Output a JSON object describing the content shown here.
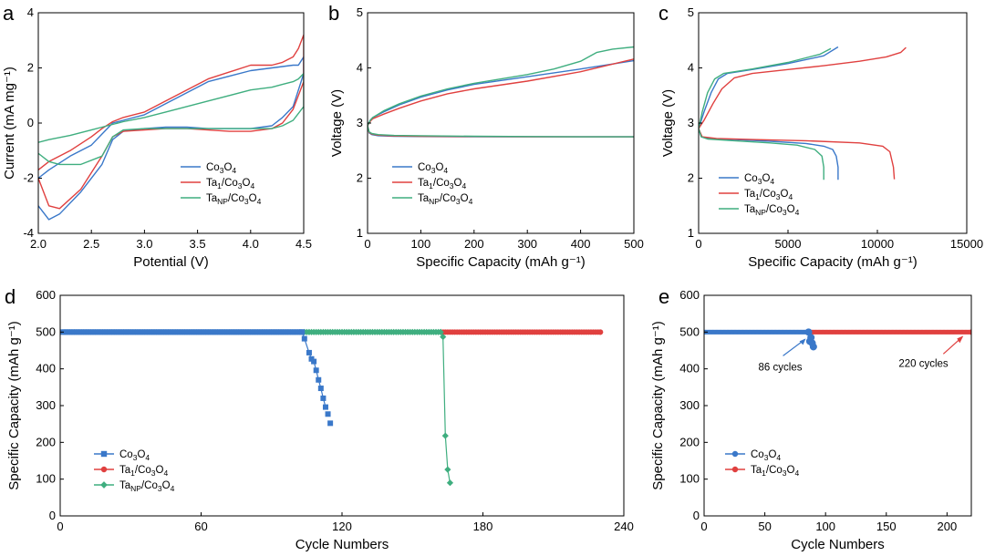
{
  "colors": {
    "co3o4": "#3a78c9",
    "ta1": "#e0403f",
    "tanp": "#3fae7f"
  },
  "chart_data": [
    {
      "id": "a",
      "panel_label": "a",
      "type": "line",
      "xlabel": "Potential (V)",
      "ylabel": "Current (mA mg⁻¹)",
      "xlim": [
        2.0,
        4.5
      ],
      "ylim": [
        -4,
        4
      ],
      "xticks": [
        "2.0",
        "2.5",
        "3.0",
        "3.5",
        "4.0",
        "4.5"
      ],
      "yticks": [
        "-4",
        "-2",
        "0",
        "2",
        "4"
      ],
      "legend_position": "lower-right",
      "series": [
        {
          "name": "Co3O4",
          "color": "#3a78c9",
          "x": [
            2.0,
            2.1,
            2.2,
            2.4,
            2.6,
            2.7,
            2.8,
            3.0,
            3.2,
            3.4,
            3.6,
            3.8,
            4.0,
            4.2,
            4.3,
            4.4,
            4.5,
            4.5,
            4.45,
            4.4,
            4.3,
            4.2,
            4.0,
            3.6,
            3.2,
            3.0,
            2.8,
            2.7,
            2.6,
            2.5,
            2.3,
            2.1,
            2.0
          ],
          "y": [
            -3.0,
            -3.5,
            -3.3,
            -2.5,
            -1.5,
            -0.6,
            -0.3,
            -0.2,
            -0.15,
            -0.15,
            -0.2,
            -0.2,
            -0.2,
            -0.1,
            0.2,
            0.6,
            1.8,
            2.4,
            2.1,
            2.1,
            2.05,
            2.0,
            1.9,
            1.5,
            0.7,
            0.3,
            0.1,
            0.0,
            -0.4,
            -0.8,
            -1.2,
            -1.7,
            -2.0
          ]
        },
        {
          "name": "Ta1/Co3O4",
          "color": "#e0403f",
          "x": [
            2.0,
            2.1,
            2.2,
            2.4,
            2.6,
            2.7,
            2.8,
            3.0,
            3.2,
            3.4,
            3.6,
            3.8,
            4.0,
            4.2,
            4.3,
            4.4,
            4.5,
            4.5,
            4.45,
            4.4,
            4.3,
            4.2,
            4.0,
            3.6,
            3.2,
            3.0,
            2.8,
            2.7,
            2.6,
            2.5,
            2.3,
            2.1,
            2.0
          ],
          "y": [
            -2.0,
            -3.0,
            -3.1,
            -2.4,
            -1.2,
            -0.5,
            -0.3,
            -0.25,
            -0.2,
            -0.2,
            -0.25,
            -0.3,
            -0.3,
            -0.2,
            0.0,
            0.5,
            1.5,
            3.2,
            2.7,
            2.4,
            2.2,
            2.1,
            2.1,
            1.6,
            0.8,
            0.4,
            0.2,
            0.05,
            -0.2,
            -0.5,
            -1.0,
            -1.4,
            -1.7
          ]
        },
        {
          "name": "TaNP/Co3O4",
          "color": "#3fae7f",
          "x": [
            2.0,
            2.1,
            2.2,
            2.4,
            2.6,
            2.7,
            2.8,
            3.0,
            3.2,
            3.4,
            3.6,
            3.8,
            4.0,
            4.2,
            4.3,
            4.4,
            4.5,
            4.5,
            4.45,
            4.4,
            4.3,
            4.2,
            4.0,
            3.6,
            3.2,
            3.0,
            2.8,
            2.7,
            2.6,
            2.5,
            2.3,
            2.1,
            2.0
          ],
          "y": [
            -1.1,
            -1.4,
            -1.5,
            -1.5,
            -1.2,
            -0.5,
            -0.25,
            -0.2,
            -0.2,
            -0.2,
            -0.2,
            -0.2,
            -0.2,
            -0.2,
            -0.1,
            0.1,
            0.6,
            1.8,
            1.6,
            1.5,
            1.4,
            1.3,
            1.2,
            0.8,
            0.4,
            0.2,
            0.05,
            -0.05,
            -0.15,
            -0.25,
            -0.45,
            -0.6,
            -0.7
          ]
        }
      ]
    },
    {
      "id": "b",
      "panel_label": "b",
      "type": "line",
      "xlabel": "Specific Capacity  (mAh g⁻¹)",
      "ylabel": "Voltage (V)",
      "xlim": [
        0,
        500
      ],
      "ylim": [
        1,
        5
      ],
      "xticks": [
        "0",
        "100",
        "200",
        "300",
        "400",
        "500"
      ],
      "yticks": [
        "1",
        "2",
        "3",
        "4",
        "5"
      ],
      "legend_position": "lower-center",
      "series": [
        {
          "name": "Co3O4",
          "color": "#3a78c9",
          "segments": [
            {
              "x": [
                0,
                3,
                8,
                20,
                50,
                100,
                200,
                300,
                400,
                500
              ],
              "y": [
                2.95,
                2.82,
                2.79,
                2.77,
                2.76,
                2.755,
                2.75,
                2.75,
                2.75,
                2.75
              ]
            },
            {
              "x": [
                0,
                5,
                10,
                30,
                60,
                100,
                150,
                200,
                300,
                400,
                500
              ],
              "y": [
                2.95,
                3.05,
                3.1,
                3.2,
                3.33,
                3.47,
                3.6,
                3.7,
                3.84,
                3.98,
                4.13
              ]
            }
          ]
        },
        {
          "name": "Ta1/Co3O4",
          "color": "#e0403f",
          "segments": [
            {
              "x": [
                0,
                3,
                8,
                20,
                50,
                100,
                200,
                300,
                400,
                500
              ],
              "y": [
                2.95,
                2.83,
                2.8,
                2.78,
                2.765,
                2.76,
                2.755,
                2.75,
                2.75,
                2.75
              ]
            },
            {
              "x": [
                0,
                5,
                10,
                30,
                60,
                100,
                150,
                200,
                300,
                400,
                500
              ],
              "y": [
                2.95,
                3.03,
                3.08,
                3.16,
                3.27,
                3.4,
                3.53,
                3.62,
                3.76,
                3.93,
                4.16
              ]
            }
          ]
        },
        {
          "name": "TaNP/Co3O4",
          "color": "#3fae7f",
          "segments": [
            {
              "x": [
                0,
                3,
                8,
                20,
                50,
                100,
                200,
                300,
                400,
                500
              ],
              "y": [
                2.95,
                2.84,
                2.81,
                2.79,
                2.775,
                2.77,
                2.76,
                2.755,
                2.75,
                2.75
              ]
            },
            {
              "x": [
                0,
                5,
                10,
                30,
                60,
                100,
                150,
                200,
                300,
                350,
                400,
                430,
                460,
                500
              ],
              "y": [
                2.95,
                3.05,
                3.1,
                3.22,
                3.35,
                3.49,
                3.62,
                3.72,
                3.88,
                3.98,
                4.12,
                4.28,
                4.34,
                4.38
              ]
            }
          ]
        }
      ]
    },
    {
      "id": "c",
      "panel_label": "c",
      "type": "line",
      "xlabel": "Specific Capacity  (mAh g⁻¹)",
      "ylabel": "Voltage (V)",
      "xlim": [
        0,
        15000
      ],
      "ylim": [
        1,
        5
      ],
      "xticks": [
        "0",
        "5000",
        "10000",
        "15000"
      ],
      "yticks": [
        "1",
        "2",
        "3",
        "4",
        "5"
      ],
      "legend_position": "lower-left",
      "series": [
        {
          "name": "Co3O4",
          "color": "#3a78c9",
          "segments": [
            {
              "x": [
                0,
                150,
                500,
                2000,
                4000,
                6000,
                7000,
                7500,
                7700,
                7800,
                7800
              ],
              "y": [
                2.9,
                2.75,
                2.72,
                2.7,
                2.67,
                2.63,
                2.58,
                2.52,
                2.4,
                2.2,
                1.97
              ]
            },
            {
              "x": [
                0,
                300,
                700,
                1100,
                1600,
                3000,
                5000,
                7000,
                7800
              ],
              "y": [
                2.9,
                3.2,
                3.55,
                3.8,
                3.9,
                3.97,
                4.08,
                4.22,
                4.38
              ]
            }
          ]
        },
        {
          "name": "Ta1/Co3O4",
          "color": "#e0403f",
          "segments": [
            {
              "x": [
                0,
                200,
                1000,
                3000,
                6000,
                9000,
                10300,
                10700,
                10900,
                10950
              ],
              "y": [
                2.9,
                2.75,
                2.72,
                2.7,
                2.68,
                2.64,
                2.58,
                2.48,
                2.2,
                1.98
              ]
            },
            {
              "x": [
                0,
                300,
                800,
                1300,
                2000,
                3000,
                5000,
                7000,
                9000,
                10500,
                11300,
                11600
              ],
              "y": [
                2.9,
                3.05,
                3.35,
                3.62,
                3.82,
                3.9,
                3.97,
                4.04,
                4.12,
                4.2,
                4.28,
                4.37
              ]
            }
          ]
        },
        {
          "name": "TaNP/Co3O4",
          "color": "#3fae7f",
          "segments": [
            {
              "x": [
                0,
                150,
                500,
                2000,
                4000,
                5500,
                6500,
                6900,
                7000,
                7000
              ],
              "y": [
                2.9,
                2.75,
                2.71,
                2.68,
                2.64,
                2.6,
                2.52,
                2.4,
                2.2,
                1.97
              ]
            },
            {
              "x": [
                0,
                200,
                500,
                900,
                1400,
                3000,
                5000,
                6800,
                7400
              ],
              "y": [
                2.9,
                3.2,
                3.55,
                3.8,
                3.9,
                3.98,
                4.1,
                4.25,
                4.35
              ]
            }
          ]
        }
      ]
    },
    {
      "id": "d",
      "panel_label": "d",
      "type": "scatter",
      "xlabel": "Cycle Numbers",
      "ylabel": "Specific Capacity  (mAh g⁻¹)",
      "xlim": [
        0,
        240
      ],
      "ylim": [
        0,
        600
      ],
      "xticks": [
        "0",
        "60",
        "120",
        "180",
        "240"
      ],
      "yticks": [
        "0",
        "100",
        "200",
        "300",
        "400",
        "500",
        "600"
      ],
      "legend_position": "lower-left",
      "series": [
        {
          "name": "Co3O4",
          "color": "#3a78c9",
          "marker": "square",
          "x": [
            103,
            104,
            106,
            107,
            108,
            109,
            110,
            111,
            112,
            113
          ],
          "y": [
            500,
            482,
            444,
            427,
            420,
            396,
            370,
            347,
            320,
            296
          ]
        },
        {
          "name": "Ta1/Co3O4",
          "color": "#e0403f",
          "marker": "circle",
          "x": [
            230
          ],
          "y": [
            500
          ]
        },
        {
          "name": "TaNP/Co3O4",
          "color": "#3fae7f",
          "marker": "diamond",
          "x": [
            162,
            163,
            164,
            165,
            166
          ],
          "y": [
            500,
            487,
            218,
            126,
            90
          ]
        }
      ],
      "flat_runs": [
        {
          "series": "Co3O4",
          "from": 1,
          "to": 103,
          "value": 500
        },
        {
          "series": "TaNP/Co3O4",
          "from": 104,
          "to": 162,
          "value": 500
        },
        {
          "series": "Ta1/Co3O4",
          "from": 163,
          "to": 230,
          "value": 500
        }
      ],
      "extra_points": [
        {
          "series": "Co3O4",
          "x": 114,
          "y": 277
        },
        {
          "series": "Co3O4",
          "x": 115,
          "y": 252
        }
      ]
    },
    {
      "id": "e",
      "panel_label": "e",
      "type": "scatter",
      "xlabel": "Cycle Numbers",
      "ylabel": "Specific Capacity  (mAh g⁻¹)",
      "xlim": [
        0,
        220
      ],
      "ylim": [
        0,
        600
      ],
      "xticks": [
        "0",
        "50",
        "100",
        "150",
        "200"
      ],
      "yticks": [
        "0",
        "100",
        "200",
        "300",
        "400",
        "500",
        "600"
      ],
      "legend_position": "lower-left",
      "series": [
        {
          "name": "Co3O4",
          "color": "#3a78c9",
          "marker": "circle",
          "x": [
            86,
            87,
            88,
            89,
            90
          ],
          "y": [
            500,
            475,
            485,
            470,
            460
          ]
        },
        {
          "name": "Ta1/Co3O4",
          "color": "#e0403f",
          "marker": "circle",
          "x": [
            220
          ],
          "y": [
            500
          ]
        }
      ],
      "flat_runs": [
        {
          "series": "Co3O4",
          "from": 1,
          "to": 86,
          "value": 500
        },
        {
          "series": "Ta1/Co3O4",
          "from": 87,
          "to": 220,
          "value": 500
        }
      ],
      "annotations": [
        {
          "text": "86 cycles",
          "color": "#3a78c9",
          "point_to": [
            86,
            490
          ]
        },
        {
          "text": "220 cycles",
          "color": "#e0403f",
          "point_to": [
            215,
            500
          ]
        }
      ]
    }
  ]
}
